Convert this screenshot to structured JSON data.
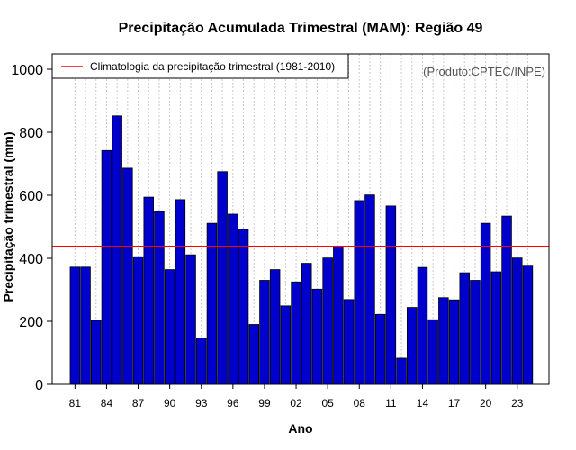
{
  "chart_data": {
    "type": "bar",
    "title": "Precipitação Acumulada Trimestral (MAM): Região 49",
    "xlabel": "Ano",
    "ylabel": "Precipitação trimestral (mm)",
    "ylim": [
      0,
      1000
    ],
    "yticks": [
      0,
      200,
      400,
      600,
      800,
      1000
    ],
    "x_tick_labels": [
      "81",
      "84",
      "87",
      "90",
      "93",
      "96",
      "99",
      "02",
      "05",
      "08",
      "11",
      "14",
      "17",
      "20",
      "23"
    ],
    "categories": [
      "1981",
      "1982",
      "1983",
      "1984",
      "1985",
      "1986",
      "1987",
      "1988",
      "1989",
      "1990",
      "1991",
      "1992",
      "1993",
      "1994",
      "1995",
      "1996",
      "1997",
      "1998",
      "1999",
      "2000",
      "2001",
      "2002",
      "2003",
      "2004",
      "2005",
      "2006",
      "2007",
      "2008",
      "2009",
      "2010",
      "2011",
      "2012",
      "2013",
      "2014",
      "2015",
      "2016",
      "2017",
      "2018",
      "2019",
      "2020",
      "2021",
      "2022",
      "2023",
      "2024"
    ],
    "values": [
      372,
      372,
      203,
      742,
      852,
      686,
      405,
      594,
      548,
      364,
      586,
      411,
      147,
      511,
      675,
      540,
      492,
      190,
      330,
      364,
      249,
      325,
      384,
      302,
      401,
      437,
      269,
      583,
      601,
      222,
      566,
      83,
      244,
      371,
      205,
      275,
      268,
      354,
      330,
      511,
      357,
      534,
      401,
      378
    ],
    "climatology": {
      "label": "Climatologia da precipitação trimestral (1981-2010)",
      "value": 438,
      "color": "#ff0000"
    },
    "legend_position": "top-left",
    "credit": "(Produto:CPTEC/INPE)",
    "bar_color": "#0000cd",
    "grid": "vertical-dashed"
  }
}
